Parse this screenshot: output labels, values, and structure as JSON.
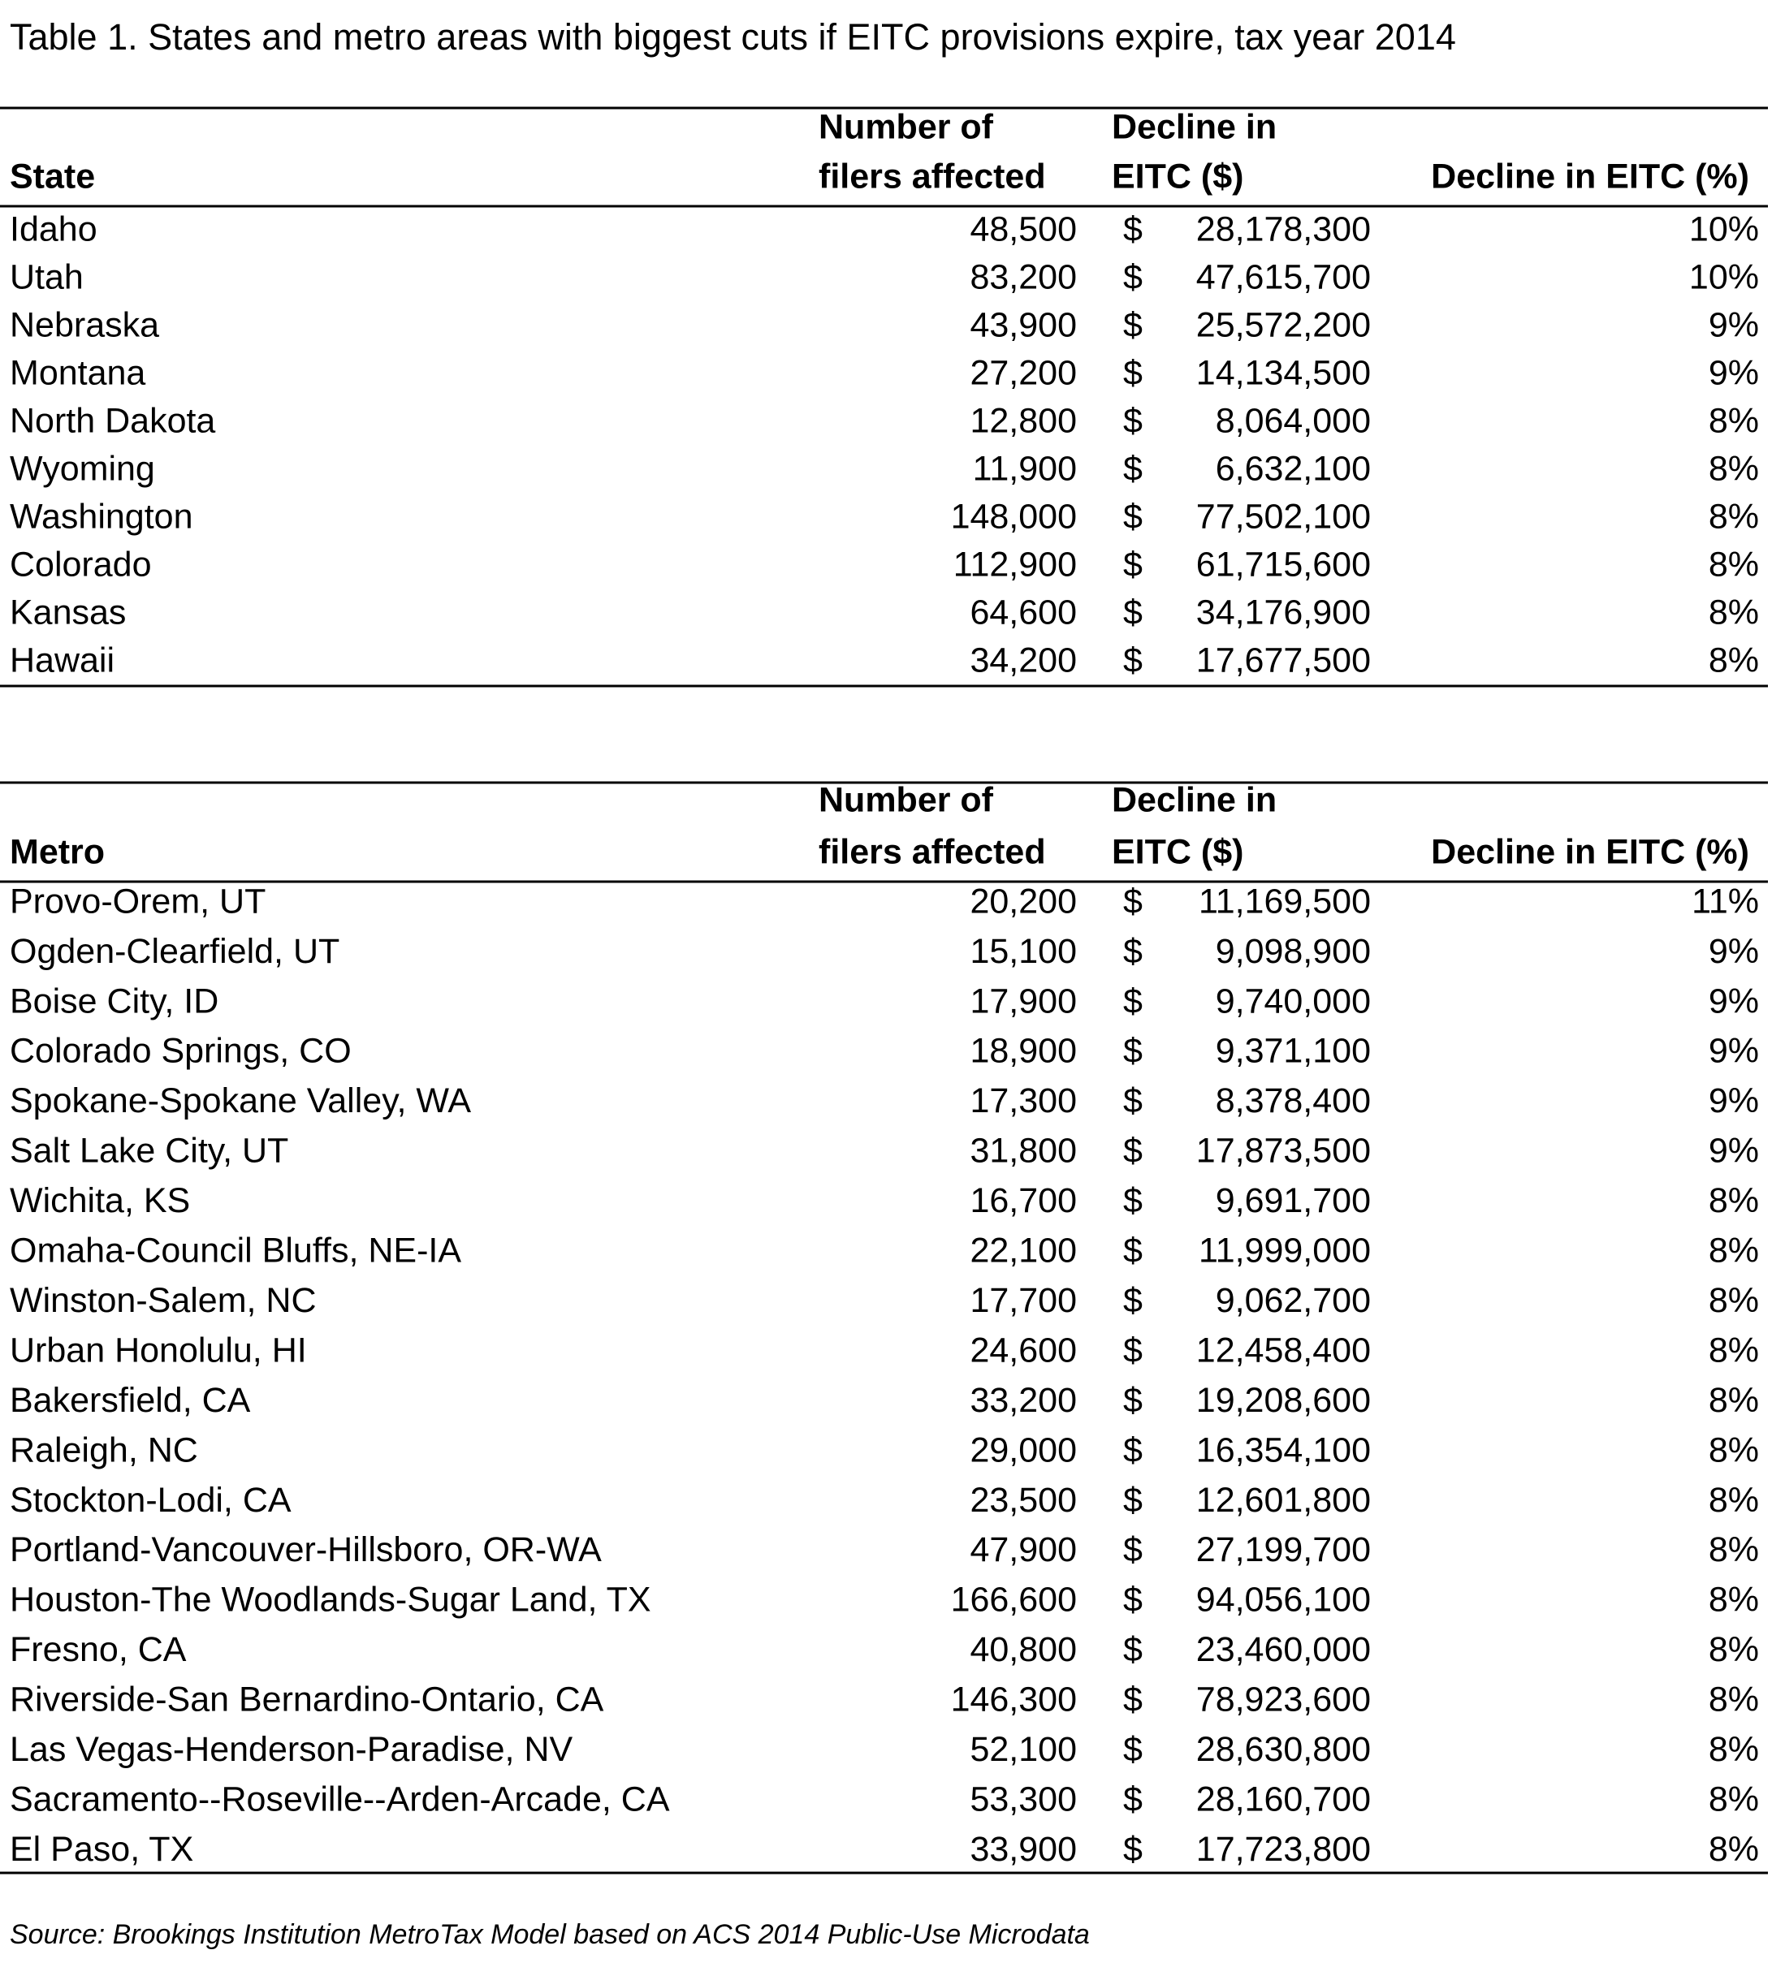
{
  "title": "Table 1. States and metro areas with biggest cuts if EITC provisions expire, tax year 2014",
  "tables": [
    {
      "headers": [
        [
          "State"
        ],
        [
          "Number of",
          "filers affected"
        ],
        [
          "Decline in",
          "EITC ($)"
        ],
        [
          "Decline in EITC (%)"
        ]
      ],
      "rows": [
        [
          "Idaho",
          "48,500",
          "$",
          "28,178,300",
          "10%"
        ],
        [
          "Utah",
          "83,200",
          "$",
          "47,615,700",
          "10%"
        ],
        [
          "Nebraska",
          "43,900",
          "$",
          "25,572,200",
          "9%"
        ],
        [
          "Montana",
          "27,200",
          "$",
          "14,134,500",
          "9%"
        ],
        [
          "North Dakota",
          "12,800",
          "$",
          "8,064,000",
          "8%"
        ],
        [
          "Wyoming",
          "11,900",
          "$",
          "6,632,100",
          "8%"
        ],
        [
          "Washington",
          "148,000",
          "$",
          "77,502,100",
          "8%"
        ],
        [
          "Colorado",
          "112,900",
          "$",
          "61,715,600",
          "8%"
        ],
        [
          "Kansas",
          "64,600",
          "$",
          "34,176,900",
          "8%"
        ],
        [
          "Hawaii",
          "34,200",
          "$",
          "17,677,500",
          "8%"
        ]
      ]
    },
    {
      "headers": [
        [
          "Metro"
        ],
        [
          "Number of",
          "filers affected"
        ],
        [
          "Decline in",
          "EITC ($)"
        ],
        [
          "Decline in EITC (%)"
        ]
      ],
      "rows": [
        [
          "Provo-Orem, UT",
          "20,200",
          "$",
          "11,169,500",
          "11%"
        ],
        [
          "Ogden-Clearfield, UT",
          "15,100",
          "$",
          "9,098,900",
          "9%"
        ],
        [
          "Boise City, ID",
          "17,900",
          "$",
          "9,740,000",
          "9%"
        ],
        [
          "Colorado Springs, CO",
          "18,900",
          "$",
          "9,371,100",
          "9%"
        ],
        [
          "Spokane-Spokane Valley, WA",
          "17,300",
          "$",
          "8,378,400",
          "9%"
        ],
        [
          "Salt Lake City, UT",
          "31,800",
          "$",
          "17,873,500",
          "9%"
        ],
        [
          "Wichita, KS",
          "16,700",
          "$",
          "9,691,700",
          "8%"
        ],
        [
          "Omaha-Council Bluffs, NE-IA",
          "22,100",
          "$",
          "11,999,000",
          "8%"
        ],
        [
          "Winston-Salem, NC",
          "17,700",
          "$",
          "9,062,700",
          "8%"
        ],
        [
          "Urban Honolulu, HI",
          "24,600",
          "$",
          "12,458,400",
          "8%"
        ],
        [
          "Bakersfield, CA",
          "33,200",
          "$",
          "19,208,600",
          "8%"
        ],
        [
          "Raleigh, NC",
          "29,000",
          "$",
          "16,354,100",
          "8%"
        ],
        [
          "Stockton-Lodi, CA",
          "23,500",
          "$",
          "12,601,800",
          "8%"
        ],
        [
          "Portland-Vancouver-Hillsboro, OR-WA",
          "47,900",
          "$",
          "27,199,700",
          "8%"
        ],
        [
          "Houston-The Woodlands-Sugar Land, TX",
          "166,600",
          "$",
          "94,056,100",
          "8%"
        ],
        [
          "Fresno, CA",
          "40,800",
          "$",
          "23,460,000",
          "8%"
        ],
        [
          "Riverside-San Bernardino-Ontario, CA",
          "146,300",
          "$",
          "78,923,600",
          "8%"
        ],
        [
          "Las Vegas-Henderson-Paradise, NV",
          "52,100",
          "$",
          "28,630,800",
          "8%"
        ],
        [
          "Sacramento--Roseville--Arden-Arcade, CA",
          "53,300",
          "$",
          "28,160,700",
          "8%"
        ],
        [
          "El Paso, TX",
          "33,900",
          "$",
          "17,723,800",
          "8%"
        ]
      ]
    }
  ],
  "source": "Source: Brookings Institution MetroTax Model based on ACS 2014 Public-Use Microdata"
}
